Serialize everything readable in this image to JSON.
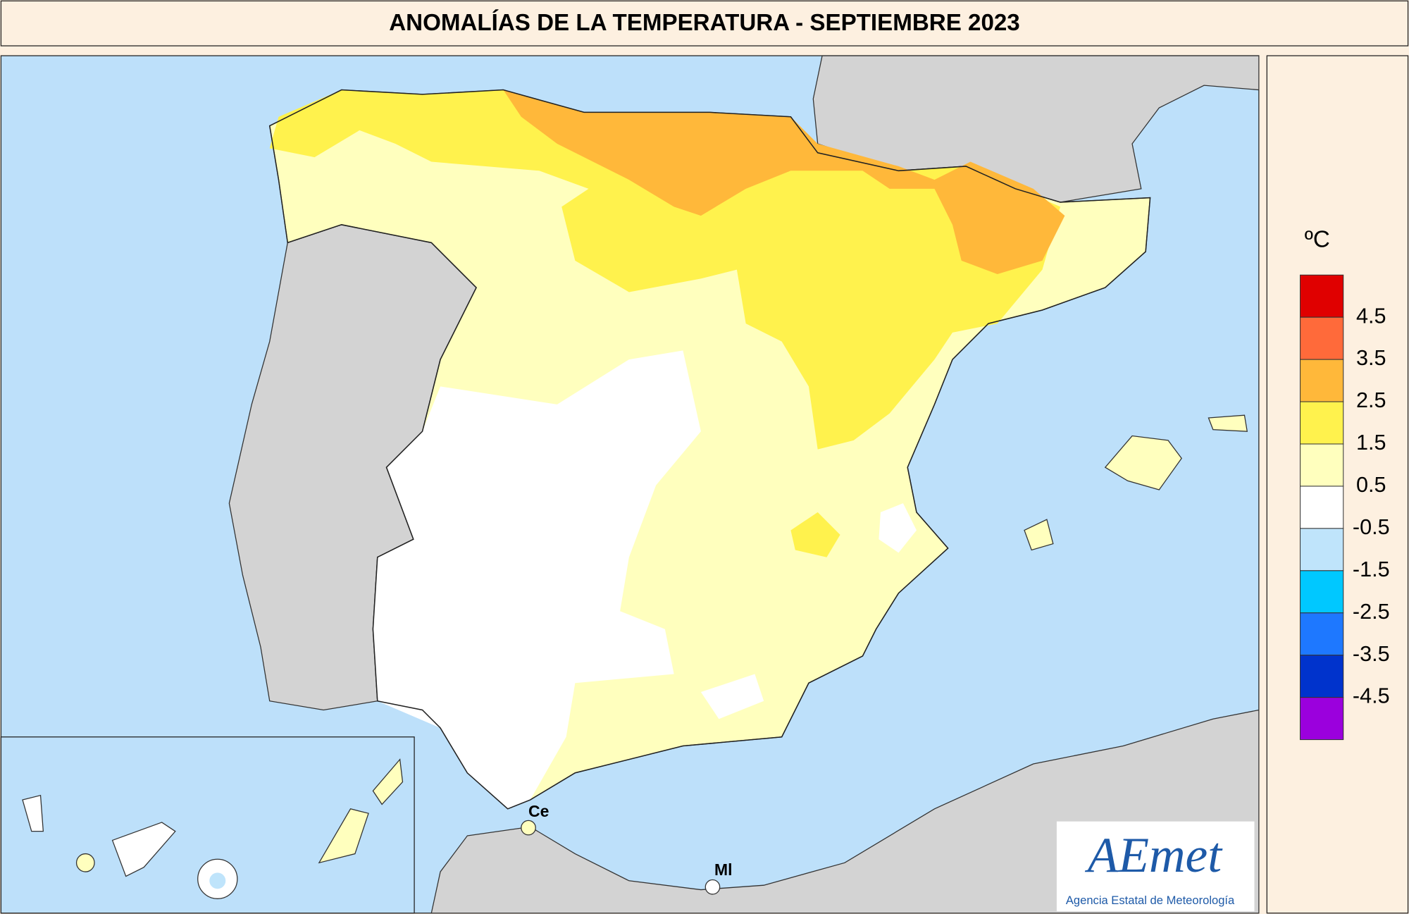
{
  "header": {
    "title": "ANOMALÍAS DE LA TEMPERATURA - SEPTIEMBRE 2023"
  },
  "legend": {
    "unit": "ºC",
    "ticks": [
      4.5,
      3.5,
      2.5,
      1.5,
      0.5,
      -0.5,
      -1.5,
      -2.5,
      -3.5,
      -4.5
    ],
    "colors": [
      "#e00000",
      "#ff6a3a",
      "#ffb83a",
      "#fff24d",
      "#ffffbe",
      "#ffffff",
      "#bfe4fb",
      "#00c8ff",
      "#1e78ff",
      "#0033cc",
      "#9b00dd"
    ]
  },
  "map": {
    "places": [
      "Ce",
      "Ml"
    ]
  },
  "logo": {
    "name": "AEmet",
    "subtitle": "Agencia Estatal de Meteorología"
  }
}
